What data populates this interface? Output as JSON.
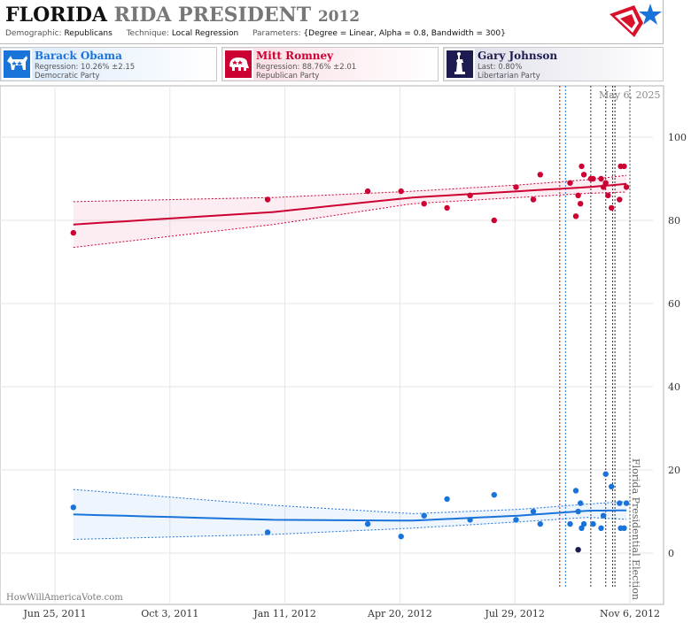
{
  "header": {
    "title_state": "FLORIDA",
    "title_rest": "RIDA PRESIDENT",
    "title_year": "2012",
    "demographic_label": "Demographic:",
    "demographic_value": "Republicans",
    "technique_label": "Technique:",
    "technique_value": "Local Regression",
    "parameters_label": "Parameters:",
    "parameters_value": "{Degree = Linear, Alpha = 0.8, Bandwidth = 300}"
  },
  "candidates": [
    {
      "name": "Barack Obama",
      "line2": "Regression: 10.26% ±2.15",
      "line3": "Democratic Party",
      "color": "#1a73d9",
      "icon": "donkey-icon"
    },
    {
      "name": "Mitt Romney",
      "line2": "Regression: 88.76% ±2.01",
      "line3": "Republican Party",
      "color": "#cc0033",
      "icon": "elephant-icon"
    },
    {
      "name": "Gary Johnson",
      "line2": "Last: 0.80%",
      "line3": "Libertarian Party",
      "color": "#1c1c50",
      "icon": "statue-of-liberty-icon"
    }
  ],
  "credit": "HowWillAmericaVote.com",
  "chart_data": {
    "type": "scatter",
    "today_label": "May 6, 2025",
    "event_label": "Florida Presidential Election",
    "x_ticks": [
      "Jun 25, 2011",
      "Oct 3, 2011",
      "Jan 11, 2012",
      "Apr 20, 2012",
      "Jul 29, 2012",
      "Nov 6, 2012"
    ],
    "x_range": [
      "2011-06-11",
      "2012-11-14"
    ],
    "ylim": [
      -12,
      112
    ],
    "y_ticks": [
      0,
      20,
      40,
      60,
      80,
      100
    ],
    "grid": true,
    "series": [
      {
        "name": "Mitt Romney",
        "color": "#cc0033",
        "points": [
          [
            "2011-07-11",
            77
          ],
          [
            "2011-12-27",
            85
          ],
          [
            "2012-03-23",
            87
          ],
          [
            "2012-04-21",
            87
          ],
          [
            "2012-05-11",
            84
          ],
          [
            "2012-05-31",
            83
          ],
          [
            "2012-06-20",
            86
          ],
          [
            "2012-07-11",
            80
          ],
          [
            "2012-07-30",
            88
          ],
          [
            "2012-08-14",
            85
          ],
          [
            "2012-08-20",
            91
          ],
          [
            "2012-09-15",
            89
          ],
          [
            "2012-09-20",
            81
          ],
          [
            "2012-09-22",
            86
          ],
          [
            "2012-09-24",
            84
          ],
          [
            "2012-09-25",
            93
          ],
          [
            "2012-09-27",
            91
          ],
          [
            "2012-10-03",
            90
          ],
          [
            "2012-10-05",
            90
          ],
          [
            "2012-10-12",
            90
          ],
          [
            "2012-10-14",
            88
          ],
          [
            "2012-10-16",
            89
          ],
          [
            "2012-10-18",
            86
          ],
          [
            "2012-10-21",
            83
          ],
          [
            "2012-10-28",
            85
          ],
          [
            "2012-10-29",
            93
          ],
          [
            "2012-11-01",
            93
          ],
          [
            "2012-11-03",
            88
          ]
        ],
        "trend": [
          [
            "2011-07-11",
            79
          ],
          [
            "2012-01-01",
            82
          ],
          [
            "2012-05-01",
            85.5
          ],
          [
            "2012-08-01",
            87
          ],
          [
            "2012-10-01",
            88
          ],
          [
            "2012-11-03",
            88.76
          ]
        ],
        "band_upper": [
          [
            "2011-07-11",
            84.5
          ],
          [
            "2012-01-01",
            85.5
          ],
          [
            "2012-05-01",
            87
          ],
          [
            "2012-08-01",
            88.5
          ],
          [
            "2012-10-01",
            89.8
          ],
          [
            "2012-11-03",
            90.8
          ]
        ],
        "band_lower": [
          [
            "2011-07-11",
            73.5
          ],
          [
            "2012-01-01",
            79
          ],
          [
            "2012-05-01",
            84
          ],
          [
            "2012-08-01",
            85.5
          ],
          [
            "2012-10-01",
            86.5
          ],
          [
            "2012-11-03",
            86.8
          ]
        ]
      },
      {
        "name": "Barack Obama",
        "color": "#1a73d9",
        "points": [
          [
            "2011-07-11",
            11
          ],
          [
            "2011-12-27",
            5
          ],
          [
            "2012-03-23",
            7
          ],
          [
            "2012-04-21",
            4
          ],
          [
            "2012-05-11",
            9
          ],
          [
            "2012-05-31",
            13
          ],
          [
            "2012-06-20",
            8
          ],
          [
            "2012-07-11",
            14
          ],
          [
            "2012-07-30",
            8
          ],
          [
            "2012-08-14",
            10
          ],
          [
            "2012-08-20",
            7
          ],
          [
            "2012-09-15",
            7
          ],
          [
            "2012-09-20",
            15
          ],
          [
            "2012-09-22",
            10
          ],
          [
            "2012-09-24",
            12
          ],
          [
            "2012-09-25",
            6
          ],
          [
            "2012-09-27",
            7
          ],
          [
            "2012-10-05",
            7
          ],
          [
            "2012-10-12",
            6
          ],
          [
            "2012-10-14",
            9
          ],
          [
            "2012-10-16",
            19
          ],
          [
            "2012-10-21",
            16
          ],
          [
            "2012-10-28",
            12
          ],
          [
            "2012-10-29",
            6
          ],
          [
            "2012-11-01",
            6
          ],
          [
            "2012-11-03",
            12
          ]
        ],
        "trend": [
          [
            "2011-07-11",
            9.3
          ],
          [
            "2012-01-01",
            8
          ],
          [
            "2012-05-01",
            7.8
          ],
          [
            "2012-08-01",
            9
          ],
          [
            "2012-10-01",
            10.2
          ],
          [
            "2012-11-03",
            10.26
          ]
        ],
        "band_upper": [
          [
            "2011-07-11",
            15.3
          ],
          [
            "2012-01-01",
            11.5
          ],
          [
            "2012-05-01",
            9.5
          ],
          [
            "2012-08-01",
            10.5
          ],
          [
            "2012-10-01",
            11.8
          ],
          [
            "2012-11-03",
            12.4
          ]
        ],
        "band_lower": [
          [
            "2011-07-11",
            3.3
          ],
          [
            "2012-01-01",
            4.5
          ],
          [
            "2012-05-01",
            6
          ],
          [
            "2012-08-01",
            7.5
          ],
          [
            "2012-10-01",
            8.6
          ],
          [
            "2012-11-03",
            8.1
          ]
        ]
      },
      {
        "name": "Gary Johnson",
        "color": "#1c1c50",
        "points": [
          [
            "2012-09-22",
            0.8
          ]
        ]
      }
    ],
    "vlines": [
      {
        "date": "2012-09-06",
        "color": "#cc0033"
      },
      {
        "date": "2012-09-11",
        "color": "#1a73d9"
      },
      {
        "date": "2012-10-03",
        "color": "#333333"
      },
      {
        "date": "2012-10-16",
        "color": "#333333"
      },
      {
        "date": "2012-10-22",
        "color": "#333333"
      },
      {
        "date": "2012-10-24",
        "color": "#333333"
      },
      {
        "date": "2012-11-06",
        "color": "#555555"
      }
    ]
  }
}
